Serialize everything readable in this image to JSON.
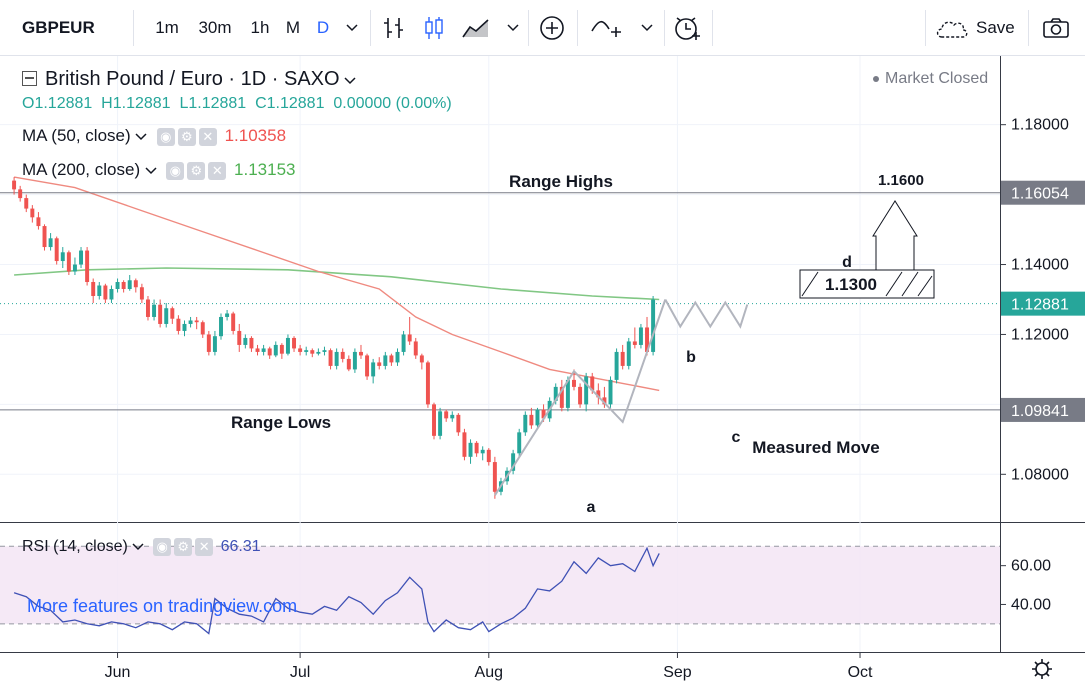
{
  "toolbar": {
    "symbol": "GBPEUR",
    "intervals": [
      "1m",
      "30m",
      "1h",
      "M",
      "D"
    ],
    "active_interval": "D",
    "save_label": "Save",
    "icons": [
      "chevron-down-icon",
      "bar-type-icon",
      "candles-icon",
      "area-chart-icon",
      "chevron-down-icon",
      "add-indicator-icon",
      "line-tool-icon",
      "chevron-down-icon",
      "alert-icon",
      "cloud-save-icon",
      "camera-icon"
    ]
  },
  "legend": {
    "title": "British Pound / Euro · 1D · SAXO",
    "status": "Market Closed",
    "ohlc": {
      "o": "O1.12881",
      "h": "H1.12881",
      "l": "L1.12881",
      "c": "C1.12881",
      "chg": "0.00000 (0.00%)"
    },
    "ma50": {
      "label": "MA (50, close)",
      "value": "1.10358",
      "color": "#ef5350"
    },
    "ma200": {
      "label": "MA (200, close)",
      "value": "1.13153",
      "color": "#4caf50"
    }
  },
  "rsi": {
    "label": "RSI (14, close)",
    "value": "66.31",
    "ticks": [
      "60.00",
      "40.00"
    ]
  },
  "watermark": "More features on tradingview.com",
  "annotations": {
    "range_highs": "Range Highs",
    "range_lows": "Range Lows",
    "measured_move": "Measured Move",
    "a": "a",
    "b": "b",
    "c": "c",
    "d": "d",
    "target_1": "1.1300",
    "target_2": "1.1600"
  },
  "chart_data": {
    "type": "candlestick",
    "symbol": "GBPEUR",
    "y_ticks": [
      "1.18000",
      "1.16000",
      "1.14000",
      "1.12000",
      "1.10000",
      "1.08000"
    ],
    "y_ticks_hidden": [
      "1.16000",
      "1.10000"
    ],
    "y_range": [
      1.0675,
      1.1985
    ],
    "x_ticks": [
      "Jun",
      "Jul",
      "Aug",
      "Sep",
      "Oct"
    ],
    "x_tick_days": [
      17,
      47,
      78,
      109,
      139
    ],
    "x_range": [
      -1,
      162
    ],
    "price_labels": [
      {
        "value": 1.16054,
        "text": "1.16054",
        "color": "#787b86"
      },
      {
        "value": 1.12881,
        "text": "1.12881",
        "color": "#26a69a"
      },
      {
        "value": 1.09841,
        "text": "1.09841",
        "color": "#787b86"
      }
    ],
    "range_high": 1.16054,
    "range_low": 1.09841,
    "candles": [
      [
        1.164,
        1.165,
        1.16,
        1.1615
      ],
      [
        1.1615,
        1.1625,
        1.158,
        1.159
      ],
      [
        1.159,
        1.16,
        1.155,
        1.156
      ],
      [
        1.156,
        1.157,
        1.152,
        1.1535
      ],
      [
        1.1535,
        1.155,
        1.15,
        1.151
      ],
      [
        1.151,
        1.1515,
        1.144,
        1.145
      ],
      [
        1.145,
        1.149,
        1.144,
        1.1475
      ],
      [
        1.1475,
        1.148,
        1.14,
        1.141
      ],
      [
        1.141,
        1.145,
        1.139,
        1.1435
      ],
      [
        1.1435,
        1.144,
        1.137,
        1.138
      ],
      [
        1.138,
        1.142,
        1.137,
        1.14
      ],
      [
        1.14,
        1.145,
        1.139,
        1.144
      ],
      [
        1.144,
        1.145,
        1.134,
        1.135
      ],
      [
        1.135,
        1.136,
        1.129,
        1.131
      ],
      [
        1.131,
        1.135,
        1.13,
        1.134
      ],
      [
        1.134,
        1.1345,
        1.129,
        1.13
      ],
      [
        1.13,
        1.134,
        1.129,
        1.133
      ],
      [
        1.133,
        1.136,
        1.132,
        1.135
      ],
      [
        1.135,
        1.1355,
        1.132,
        1.133
      ],
      [
        1.133,
        1.137,
        1.1325,
        1.1355
      ],
      [
        1.1355,
        1.136,
        1.132,
        1.1335
      ],
      [
        1.1335,
        1.1345,
        1.129,
        1.13
      ],
      [
        1.13,
        1.131,
        1.124,
        1.125
      ],
      [
        1.125,
        1.13,
        1.124,
        1.1285
      ],
      [
        1.1285,
        1.13,
        1.122,
        1.123
      ],
      [
        1.123,
        1.129,
        1.122,
        1.1275
      ],
      [
        1.1275,
        1.128,
        1.123,
        1.1245
      ],
      [
        1.1245,
        1.1255,
        1.12,
        1.121
      ],
      [
        1.121,
        1.124,
        1.1195,
        1.123
      ],
      [
        1.123,
        1.125,
        1.122,
        1.124
      ],
      [
        1.124,
        1.125,
        1.1215,
        1.1235
      ],
      [
        1.1235,
        1.124,
        1.119,
        1.12
      ],
      [
        1.12,
        1.121,
        1.114,
        1.115
      ],
      [
        1.115,
        1.121,
        1.114,
        1.1195
      ],
      [
        1.1195,
        1.126,
        1.1185,
        1.125
      ],
      [
        1.125,
        1.127,
        1.124,
        1.126
      ],
      [
        1.126,
        1.1265,
        1.12,
        1.121
      ],
      [
        1.121,
        1.123,
        1.115,
        1.117
      ],
      [
        1.117,
        1.12,
        1.116,
        1.119
      ],
      [
        1.119,
        1.1195,
        1.115,
        1.116
      ],
      [
        1.116,
        1.117,
        1.114,
        1.115
      ],
      [
        1.115,
        1.117,
        1.114,
        1.116
      ],
      [
        1.116,
        1.1165,
        1.113,
        1.114
      ],
      [
        1.114,
        1.118,
        1.1135,
        1.117
      ],
      [
        1.117,
        1.1175,
        1.113,
        1.1145
      ],
      [
        1.1145,
        1.12,
        1.114,
        1.119
      ],
      [
        1.119,
        1.1195,
        1.115,
        1.116
      ],
      [
        1.116,
        1.117,
        1.114,
        1.115
      ],
      [
        1.115,
        1.1165,
        1.114,
        1.1155
      ],
      [
        1.1155,
        1.116,
        1.1135,
        1.1145
      ],
      [
        1.1145,
        1.116,
        1.114,
        1.115
      ],
      [
        1.115,
        1.1165,
        1.114,
        1.1155
      ],
      [
        1.1155,
        1.116,
        1.11,
        1.111
      ],
      [
        1.111,
        1.116,
        1.11,
        1.115
      ],
      [
        1.115,
        1.116,
        1.112,
        1.113
      ],
      [
        1.113,
        1.114,
        1.1095,
        1.11
      ],
      [
        1.11,
        1.116,
        1.109,
        1.115
      ],
      [
        1.115,
        1.117,
        1.113,
        1.114
      ],
      [
        1.114,
        1.1145,
        1.107,
        1.108
      ],
      [
        1.108,
        1.113,
        1.106,
        1.112
      ],
      [
        1.112,
        1.1135,
        1.11,
        1.111
      ],
      [
        1.111,
        1.115,
        1.11,
        1.114
      ],
      [
        1.114,
        1.1145,
        1.111,
        1.112
      ],
      [
        1.112,
        1.116,
        1.111,
        1.115
      ],
      [
        1.115,
        1.121,
        1.114,
        1.12
      ],
      [
        1.12,
        1.125,
        1.117,
        1.118
      ],
      [
        1.118,
        1.119,
        1.113,
        1.114
      ],
      [
        1.114,
        1.1145,
        1.11,
        1.112
      ],
      [
        1.112,
        1.1125,
        1.099,
        1.1
      ],
      [
        1.1,
        1.1005,
        1.09,
        1.091
      ],
      [
        1.091,
        1.099,
        1.09,
        1.098
      ],
      [
        1.098,
        1.0985,
        1.095,
        1.096
      ],
      [
        1.096,
        1.098,
        1.095,
        1.097
      ],
      [
        1.097,
        1.0975,
        1.091,
        1.092
      ],
      [
        1.092,
        1.093,
        1.084,
        1.085
      ],
      [
        1.085,
        1.09,
        1.083,
        1.089
      ],
      [
        1.089,
        1.0895,
        1.085,
        1.086
      ],
      [
        1.086,
        1.088,
        1.084,
        1.087
      ],
      [
        1.087,
        1.0875,
        1.0825,
        1.0835
      ],
      [
        1.0835,
        1.085,
        1.073,
        1.075
      ],
      [
        1.075,
        1.079,
        1.074,
        1.078
      ],
      [
        1.078,
        1.082,
        1.077,
        1.081
      ],
      [
        1.081,
        1.087,
        1.08,
        1.086
      ],
      [
        1.086,
        1.093,
        1.085,
        1.092
      ],
      [
        1.092,
        1.098,
        1.091,
        1.097
      ],
      [
        1.097,
        1.099,
        1.093,
        1.094
      ],
      [
        1.094,
        1.099,
        1.093,
        1.0985
      ],
      [
        1.0985,
        1.1,
        1.095,
        1.096
      ],
      [
        1.096,
        1.102,
        1.095,
        1.101
      ],
      [
        1.101,
        1.106,
        1.1,
        1.105
      ],
      [
        1.105,
        1.107,
        1.098,
        1.099
      ],
      [
        1.099,
        1.108,
        1.098,
        1.107
      ],
      [
        1.107,
        1.11,
        1.104,
        1.105
      ],
      [
        1.105,
        1.106,
        1.099,
        1.1
      ],
      [
        1.1,
        1.109,
        1.098,
        1.108
      ],
      [
        1.108,
        1.109,
        1.103,
        1.104
      ],
      [
        1.104,
        1.106,
        1.1,
        1.102
      ],
      [
        1.102,
        1.105,
        1.099,
        1.1
      ],
      [
        1.1,
        1.108,
        1.099,
        1.107
      ],
      [
        1.107,
        1.116,
        1.106,
        1.115
      ],
      [
        1.115,
        1.117,
        1.11,
        1.111
      ],
      [
        1.111,
        1.119,
        1.11,
        1.118
      ],
      [
        1.118,
        1.122,
        1.116,
        1.117
      ],
      [
        1.117,
        1.123,
        1.116,
        1.122
      ],
      [
        1.122,
        1.125,
        1.114,
        1.115
      ],
      [
        1.115,
        1.131,
        1.114,
        1.13
      ]
    ],
    "ma50": [
      [
        0,
        1.165
      ],
      [
        10,
        1.162
      ],
      [
        20,
        1.156
      ],
      [
        30,
        1.15
      ],
      [
        40,
        1.144
      ],
      [
        50,
        1.138
      ],
      [
        60,
        1.133
      ],
      [
        66,
        1.125
      ],
      [
        72,
        1.12
      ],
      [
        80,
        1.115
      ],
      [
        88,
        1.11
      ],
      [
        100,
        1.106
      ],
      [
        106,
        1.104
      ]
    ],
    "ma200": [
      [
        0,
        1.137
      ],
      [
        12,
        1.1385
      ],
      [
        25,
        1.139
      ],
      [
        45,
        1.1385
      ],
      [
        62,
        1.1365
      ],
      [
        80,
        1.133
      ],
      [
        95,
        1.131
      ],
      [
        106,
        1.13
      ]
    ],
    "rsi_range": [
      16,
      82
    ],
    "rsi_band": [
      30,
      70
    ],
    "rsi_values": [
      [
        0,
        46
      ],
      [
        2,
        44
      ],
      [
        4,
        39
      ],
      [
        6,
        37
      ],
      [
        8,
        31
      ],
      [
        10,
        32
      ],
      [
        12,
        30
      ],
      [
        14,
        29
      ],
      [
        16,
        31
      ],
      [
        18,
        30
      ],
      [
        20,
        28
      ],
      [
        22,
        31
      ],
      [
        24,
        30
      ],
      [
        26,
        27
      ],
      [
        28,
        31
      ],
      [
        30,
        30
      ],
      [
        32,
        25
      ],
      [
        33,
        43
      ],
      [
        35,
        38
      ],
      [
        37,
        35
      ],
      [
        39,
        34
      ],
      [
        41,
        31
      ],
      [
        43,
        43
      ],
      [
        45,
        38
      ],
      [
        47,
        36
      ],
      [
        49,
        35
      ],
      [
        51,
        39
      ],
      [
        53,
        37
      ],
      [
        55,
        44
      ],
      [
        57,
        41
      ],
      [
        59,
        35
      ],
      [
        61,
        42
      ],
      [
        63,
        46
      ],
      [
        65,
        54
      ],
      [
        67,
        48
      ],
      [
        68,
        31
      ],
      [
        69,
        26
      ],
      [
        71,
        32
      ],
      [
        73,
        28
      ],
      [
        75,
        27
      ],
      [
        77,
        31
      ],
      [
        78,
        26
      ],
      [
        80,
        30
      ],
      [
        82,
        33
      ],
      [
        84,
        38
      ],
      [
        86,
        48
      ],
      [
        88,
        47
      ],
      [
        90,
        52
      ],
      [
        92,
        62
      ],
      [
        94,
        56
      ],
      [
        96,
        64
      ],
      [
        98,
        60
      ],
      [
        100,
        61
      ],
      [
        102,
        57
      ],
      [
        104,
        69
      ],
      [
        105,
        60
      ],
      [
        106,
        66.31
      ]
    ],
    "wave_points": {
      "a": [
        79,
        1.074
      ],
      "b": [
        92,
        1.1095
      ],
      "c": [
        100,
        1.095
      ],
      "d": [
        107,
        1.13
      ]
    }
  }
}
